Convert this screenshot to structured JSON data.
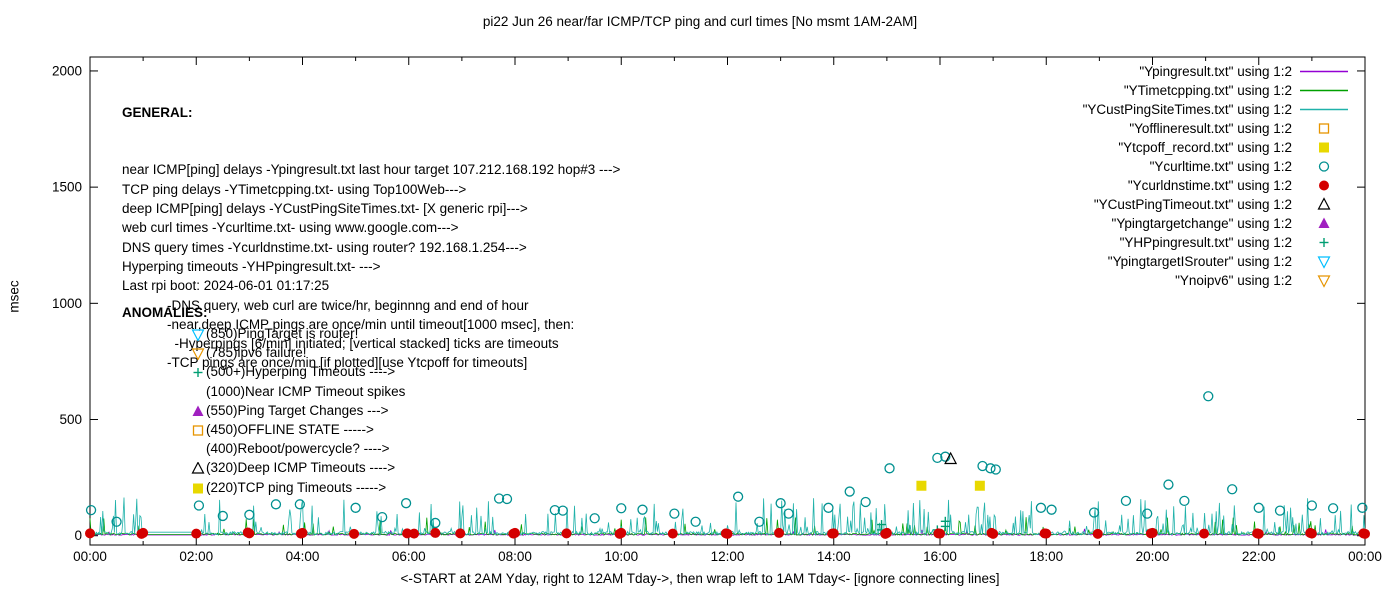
{
  "chart_data": {
    "type": "mixed",
    "title": "pi22 Jun 26  near/far ICMP/TCP ping and curl times [No msmt 1AM-2AM]",
    "xlabel": "<-START at 2AM Yday, right to 12AM Tday->, then wrap left to 1AM Tday<- [ignore connecting lines]",
    "ylabel": "msec",
    "ylim": [
      0,
      2000
    ],
    "y_ticks": [
      0,
      500,
      1000,
      1500,
      2000
    ],
    "x_ticks": [
      "00:00",
      "02:00",
      "04:00",
      "06:00",
      "08:00",
      "10:00",
      "12:00",
      "14:00",
      "16:00",
      "18:00",
      "20:00",
      "22:00",
      "00:00"
    ],
    "x_range_hours": [
      0,
      24
    ],
    "grid": false,
    "legend_position": "top-right",
    "no_measurement_window_hours": [
      1,
      2
    ],
    "noise_lines": [
      {
        "name": "Ypingresult",
        "color": "#9400d3",
        "seed": 13,
        "base": 2,
        "jitter": 5,
        "spike_prob": 0.02,
        "spike_max": 25,
        "gap_value": 3
      },
      {
        "name": "YTimetcpping",
        "color": "#00a000",
        "seed": 7,
        "base": 3,
        "jitter": 8,
        "spike_prob": 0.08,
        "spike_max": 75,
        "gap_value": 5
      },
      {
        "name": "YCustPingSiteTimes",
        "color": "#20b2aa",
        "seed": 42,
        "base": 4,
        "jitter": 14,
        "spike_prob": 0.22,
        "spike_max": 150,
        "gap_value": 15
      }
    ],
    "scatter_series": [
      {
        "name": "Yofflineresult",
        "marker": "square-open",
        "color": "#e69500",
        "points": []
      },
      {
        "name": "Ytcpoff_record",
        "marker": "square-filled",
        "color": "#e8d800",
        "points": [
          [
            15.65,
            215
          ],
          [
            16.75,
            215
          ]
        ]
      },
      {
        "name": "YHPpingresult",
        "marker": "plus",
        "color": "#009e73",
        "points": [
          [
            14.9,
            25
          ],
          [
            14.9,
            48
          ],
          [
            15.95,
            25
          ],
          [
            16.1,
            40
          ],
          [
            16.1,
            62
          ]
        ]
      },
      {
        "name": "Ycurltime",
        "marker": "circle-open",
        "color": "#009090",
        "points": [
          [
            0.02,
            110
          ],
          [
            0.5,
            60
          ],
          [
            2.05,
            130
          ],
          [
            2.5,
            85
          ],
          [
            3.0,
            90
          ],
          [
            3.5,
            135
          ],
          [
            3.95,
            135
          ],
          [
            5.0,
            120
          ],
          [
            5.5,
            80
          ],
          [
            5.95,
            140
          ],
          [
            6.5,
            55
          ],
          [
            7.7,
            160
          ],
          [
            7.85,
            158
          ],
          [
            8.75,
            110
          ],
          [
            8.9,
            108
          ],
          [
            9.5,
            75
          ],
          [
            10.0,
            118
          ],
          [
            10.4,
            112
          ],
          [
            11.0,
            95
          ],
          [
            11.4,
            60
          ],
          [
            12.2,
            168
          ],
          [
            12.6,
            60
          ],
          [
            13.0,
            140
          ],
          [
            13.15,
            95
          ],
          [
            13.9,
            120
          ],
          [
            14.3,
            190
          ],
          [
            14.6,
            145
          ],
          [
            15.05,
            290
          ],
          [
            15.95,
            335
          ],
          [
            16.1,
            340
          ],
          [
            16.8,
            300
          ],
          [
            16.95,
            290
          ],
          [
            17.05,
            285
          ],
          [
            17.9,
            120
          ],
          [
            18.1,
            112
          ],
          [
            18.9,
            100
          ],
          [
            19.5,
            150
          ],
          [
            19.9,
            95
          ],
          [
            20.3,
            220
          ],
          [
            20.6,
            150
          ],
          [
            21.05,
            600
          ],
          [
            21.5,
            200
          ],
          [
            22.0,
            120
          ],
          [
            22.4,
            108
          ],
          [
            23.0,
            130
          ],
          [
            23.4,
            118
          ],
          [
            23.95,
            120
          ]
        ]
      },
      {
        "name": "Ycurldnstime",
        "marker": "circle-filled",
        "color": "#d40000",
        "points": [
          [
            0,
            10
          ],
          [
            0.97,
            8
          ],
          [
            1,
            12
          ],
          [
            2,
            9
          ],
          [
            2.97,
            14
          ],
          [
            3,
            10
          ],
          [
            3.97,
            9
          ],
          [
            4,
            12
          ],
          [
            4.97,
            8
          ],
          [
            5.97,
            10
          ],
          [
            6.1,
            9
          ],
          [
            6.5,
            12
          ],
          [
            6.97,
            10
          ],
          [
            7.97,
            9
          ],
          [
            8,
            12
          ],
          [
            8.97,
            10
          ],
          [
            9.97,
            8
          ],
          [
            10,
            12
          ],
          [
            10.97,
            9
          ],
          [
            11.97,
            10
          ],
          [
            12,
            8
          ],
          [
            12.97,
            12
          ],
          [
            13.97,
            9
          ],
          [
            14,
            10
          ],
          [
            14.97,
            8
          ],
          [
            15,
            12
          ],
          [
            15.97,
            10
          ],
          [
            16,
            9
          ],
          [
            16.97,
            12
          ],
          [
            17,
            8
          ],
          [
            17.97,
            10
          ],
          [
            18,
            9
          ],
          [
            18.97,
            8
          ],
          [
            19.97,
            10
          ],
          [
            20,
            12
          ],
          [
            20.97,
            9
          ],
          [
            21.97,
            10
          ],
          [
            22,
            8
          ],
          [
            22.97,
            12
          ],
          [
            23,
            9
          ],
          [
            23.97,
            10
          ],
          [
            24,
            8
          ]
        ]
      },
      {
        "name": "YCustPingTimeout",
        "marker": "triangle-open",
        "color": "#000000",
        "points": [
          [
            16.2,
            330
          ]
        ]
      },
      {
        "name": "Ypingtargetchange",
        "marker": "triangle-filled",
        "color": "#a020c0",
        "points": []
      },
      {
        "name": "YpingtargetISrouter",
        "marker": "triangle-down-open",
        "color": "#00bfff",
        "points": []
      },
      {
        "name": "Ynoipv6",
        "marker": "triangle-down-open",
        "color": "#e69500",
        "points": []
      }
    ],
    "legend": [
      {
        "label": "\"Ypingresult.txt\" using 1:2",
        "type": "line",
        "color": "#9400d3"
      },
      {
        "label": "\"YTimetcpping.txt\" using 1:2",
        "type": "line",
        "color": "#00a000"
      },
      {
        "label": "\"YCustPingSiteTimes.txt\" using 1:2",
        "type": "line",
        "color": "#20b2aa"
      },
      {
        "label": "\"Yofflineresult.txt\" using 1:2",
        "type": "square-open",
        "color": "#e69500"
      },
      {
        "label": "\"Ytcpoff_record.txt\" using 1:2",
        "type": "square-filled",
        "color": "#e8d800"
      },
      {
        "label": "\"Ycurltime.txt\" using 1:2",
        "type": "circle-open",
        "color": "#009090"
      },
      {
        "label": "\"Ycurldnstime.txt\" using 1:2",
        "type": "circle-filled",
        "color": "#d40000"
      },
      {
        "label": "\"YCustPingTimeout.txt\" using 1:2",
        "type": "triangle-open",
        "color": "#000000"
      },
      {
        "label": "\"Ypingtargetchange\" using 1:2",
        "type": "triangle-filled",
        "color": "#a020c0"
      },
      {
        "label": "\"YHPpingresult.txt\" using 1:2",
        "type": "plus",
        "color": "#009e73"
      },
      {
        "label": "\"YpingtargetISrouter\" using 1:2",
        "type": "triangle-down-open",
        "color": "#00bfff"
      },
      {
        "label": "\"Ynoipv6\" using 1:2",
        "type": "triangle-down-open",
        "color": "#e69500"
      }
    ]
  },
  "annotations": {
    "general": {
      "header": "GENERAL:",
      "lines": [
        "near ICMP[ping] delays -Ypingresult.txt last hour target 107.212.168.192 hop#3 --->",
        "TCP ping delays -YTimetcpping.txt- using Top100Web--->",
        "deep ICMP[ping] delays -YCustPingSiteTimes.txt- [X generic rpi]--->",
        "web curl times -Ycurltime.txt- using www.google.com--->",
        "DNS query times -Ycurldnstime.txt- using router? 192.168.1.254--->",
        "Hyperping timeouts -YHPpingresult.txt- --->",
        "Last rpi boot: 2024-06-01 01:17:25",
        "            -DNS query, web curl are twice/hr, beginnng and end of hour",
        "            -near,deep ICMP pings are once/min until timeout[1000 msec], then:",
        "              -Hyperpings [6/min] initiated; [vertical stacked] ticks are timeouts",
        "            -TCP pings are once/min [if plotted][use Ytcpoff for timeouts]"
      ]
    },
    "anomalies": {
      "header": "ANOMALIES:",
      "items": [
        {
          "icon": "triangle-down-open",
          "color": "#00bfff",
          "label": "(850)PingTarget is router!"
        },
        {
          "icon": "triangle-down-open",
          "color": "#e69500",
          "label": "(785)ipv6 failure!"
        },
        {
          "icon": "plus",
          "color": "#009e73",
          "label": "(500+)Hyperping Timeouts ---->"
        },
        {
          "icon": "none",
          "color": "",
          "label": "(1000)Near ICMP Timeout spikes"
        },
        {
          "icon": "triangle-filled",
          "color": "#a020c0",
          "label": "(550)Ping Target Changes --->"
        },
        {
          "icon": "square-open",
          "color": "#e69500",
          "label": "(450)OFFLINE STATE ----->"
        },
        {
          "icon": "none",
          "color": "",
          "label": "(400)Reboot/powercycle? ---->"
        },
        {
          "icon": "triangle-open",
          "color": "#000000",
          "label": "(320)Deep ICMP Timeouts ---->"
        },
        {
          "icon": "square-filled",
          "color": "#e8d800",
          "label": "(220)TCP ping Timeouts ----->"
        }
      ]
    }
  }
}
